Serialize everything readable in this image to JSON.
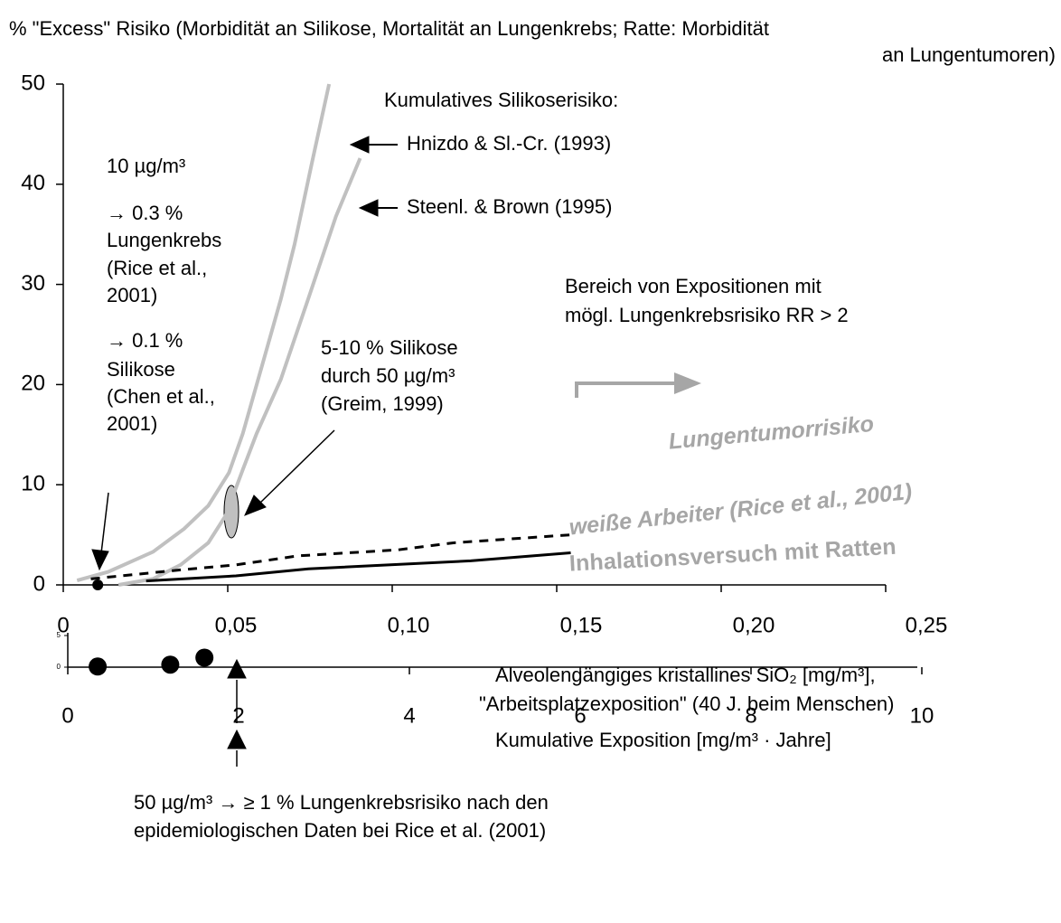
{
  "chart_data": [
    {
      "type": "line",
      "title": [
        "% \"Excess\" Risiko  (Morbidität an Silikose, Mortalität an Lungenkrebs; Ratte: Morbidität",
        "an Lungentumoren)"
      ],
      "x_label": [
        "Alveolengängiges kristallines SiO₂ [mg/m³],",
        "\"Arbeitsplatzexposition\" (40 J. beim Menschen)"
      ],
      "xlim": [
        0,
        0.25
      ],
      "xticks": [
        0,
        {
          "value": 0.05,
          "label": "0,05"
        },
        {
          "value": 0.1,
          "label": "0,10"
        },
        {
          "value": 0.15,
          "label": "0,15"
        },
        {
          "value": 0.2,
          "label": "0,20"
        },
        {
          "value": 0.25,
          "label": "0,25"
        }
      ],
      "ylim": [
        0,
        50
      ],
      "yticks": [
        0,
        10,
        20,
        30,
        40,
        50
      ],
      "series_groups": [
        "Kumulatives Silikoserisiko:",
        "Lungentumorrisiko"
      ],
      "series": [
        {
          "name": "Hnizdo & Sl.-Cr. (1993)",
          "color": "#c0c0c0",
          "x": [
            0.004,
            0.013,
            0.026,
            0.035,
            0.042,
            0.048,
            0.052,
            0.058,
            0.063,
            0.067,
            0.072,
            0.077
          ],
          "values": [
            0.45,
            1.3,
            3.3,
            5.6,
            7.9,
            11.2,
            15.1,
            22.4,
            28.5,
            34.0,
            42.1,
            50.0
          ]
        },
        {
          "name": "Steenl. & Brown (1995)",
          "color": "#c0c0c0",
          "x": [
            0.016,
            0.026,
            0.034,
            0.042,
            0.047,
            0.052,
            0.056,
            0.063,
            0.071,
            0.079,
            0.086
          ],
          "values": [
            0,
            0.6,
            2.0,
            4.2,
            6.9,
            11.5,
            15.1,
            20.5,
            28.6,
            36.8,
            42.6
          ]
        },
        {
          "name": "weiße Arbeiter (Rice et al., 2001)",
          "color": "#000000",
          "dashed": true,
          "x": [
            0.008,
            0.034,
            0.05,
            0.068,
            0.097,
            0.113,
            0.147
          ],
          "values": [
            0.6,
            1.5,
            2.0,
            2.9,
            3.5,
            4.2,
            5.0
          ]
        },
        {
          "name": "Inhalationsversuch mit Ratten",
          "color": "#000000",
          "x": [
            0.024,
            0.05,
            0.071,
            0.118,
            0.147
          ],
          "values": [
            0.4,
            0.9,
            1.6,
            2.4,
            3.2
          ]
        }
      ],
      "point": {
        "x": 0.01,
        "value": 0
      },
      "annotations": {
        "left": [
          "10 µg/m³",
          "→ 0.3 %",
          "Lungenkrebs",
          "(Rice et al.,",
          "2001)",
          "→ 0.1 %",
          "Silikose",
          "(Chen et al.,",
          "2001)"
        ],
        "greim": [
          "5-10 % Silikose",
          "durch 50 µg/m³",
          "(Greim, 1999)"
        ],
        "range": [
          "Bereich von Expositionen mit",
          "mögl. Lungenkrebsrisiko RR > 2"
        ],
        "bottom": [
          "50 µg/m³ → ≥ 1 % Lungenkrebsrisiko nach den",
          "epidemiologischen Daten bei Rice et al. (2001)"
        ]
      }
    },
    {
      "type": "scatter",
      "x_label": "Kumulative Exposition [mg/m³ · Jahre]",
      "xlim": [
        0,
        10
      ],
      "xticks": [
        0,
        2,
        4,
        6,
        8,
        10
      ],
      "ylim": [
        0,
        5
      ],
      "yticks": [
        0,
        5
      ],
      "x": [
        0.35,
        1.2,
        1.6
      ],
      "values": [
        0.1,
        0.4,
        1.5
      ],
      "color": "#000000"
    }
  ]
}
